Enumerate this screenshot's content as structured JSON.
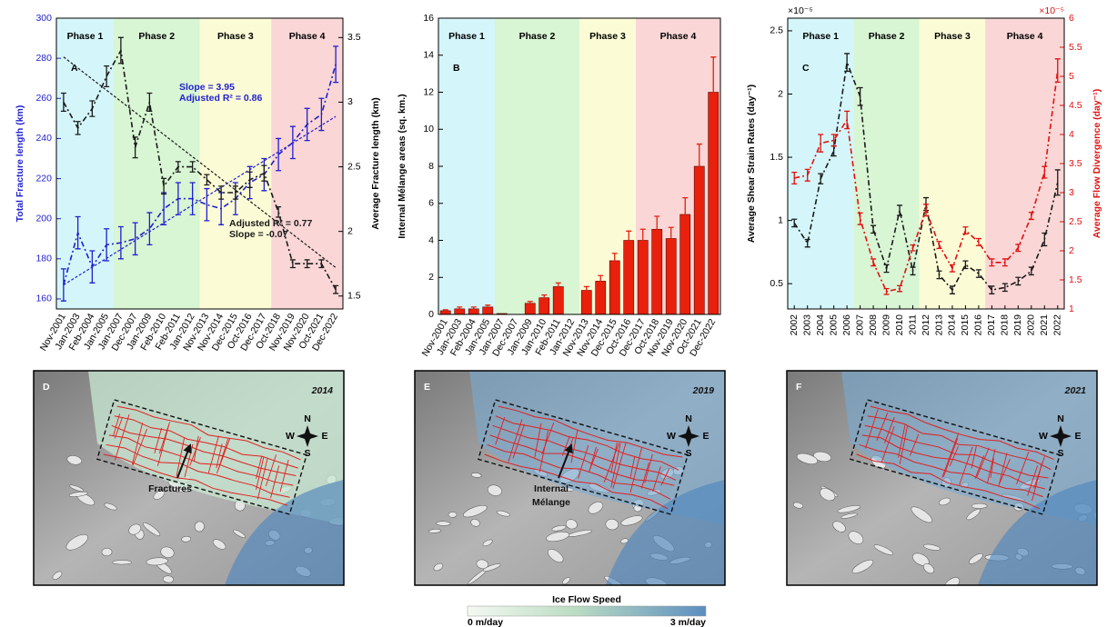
{
  "chart_data": [
    {
      "type": "line",
      "letter": "A",
      "categories": [
        "Nov-2001",
        "Jan-2003",
        "Feb-2004",
        "Jan-2005",
        "Jan-2007",
        "Dec-2007",
        "Jan-2009",
        "Feb-2010",
        "Feb-2011",
        "Jan-2012",
        "Nov-2013",
        "Nov-2014",
        "Dec-2015",
        "Oct-2016",
        "Dec-2017",
        "Oct-2018",
        "Nov-2019",
        "Nov-2020",
        "Oct-2021",
        "Dec-2022"
      ],
      "ylabel": "Total Fracture length (km)",
      "y2label": "Average Fracture length (km)",
      "ycolor": "#1f1fd0",
      "y2color": "#000000",
      "ylim": [
        155,
        300
      ],
      "yticks": [
        160,
        180,
        200,
        220,
        240,
        260,
        280,
        300
      ],
      "y2lim": [
        1.4,
        3.65
      ],
      "y2ticks": [
        1.5,
        2,
        2.5,
        3,
        3.5
      ],
      "phases": [
        {
          "label": "Phase 1",
          "from": "Nov-2001",
          "to": "Jan-2005",
          "color": "#d4f6fa"
        },
        {
          "label": "Phase 2",
          "from": "Jan-2007",
          "to": "Jan-2012",
          "color": "#d8f5d4"
        },
        {
          "label": "Phase 3",
          "from": "Nov-2013",
          "to": "Dec-2017",
          "color": "#fbfbd6"
        },
        {
          "label": "Phase 4",
          "from": "Oct-2018",
          "to": "Dec-2022",
          "color": "#fad6d6"
        }
      ],
      "series": [
        {
          "color": "#1f1fd0",
          "axis": "y",
          "values": [
            167,
            193,
            176,
            187,
            188,
            190,
            195,
            205,
            210,
            210,
            207,
            205,
            210,
            218,
            222,
            232,
            238,
            247,
            252,
            277
          ],
          "errors": [
            8,
            8,
            8,
            8,
            8,
            8,
            8,
            8,
            8,
            8,
            8,
            8,
            8,
            8,
            8,
            8,
            8,
            8,
            8,
            9
          ]
        },
        {
          "color": "#1a1a1a",
          "axis": "y2",
          "values": [
            3.0,
            2.8,
            2.95,
            3.2,
            3.4,
            2.65,
            3.0,
            2.35,
            2.5,
            2.5,
            2.4,
            2.3,
            2.3,
            2.4,
            2.45,
            2.15,
            1.75,
            1.75,
            1.75,
            1.55
          ],
          "errors": [
            0.07,
            0.05,
            0.06,
            0.08,
            0.1,
            0.08,
            0.07,
            0.06,
            0.04,
            0.04,
            0.04,
            0.05,
            0.05,
            0.06,
            0.06,
            0.04,
            0.03,
            0.03,
            0.03,
            0.03
          ]
        }
      ],
      "trend_lines": [
        {
          "color": "#1f1fd0",
          "axis": "y",
          "from": 167,
          "to": 251,
          "labels": [
            "Slope = 3.95",
            "Adjusted R² = 0.86"
          ]
        },
        {
          "color": "#1a1a1a",
          "axis": "y2",
          "from": 3.35,
          "to": 1.72,
          "labels": [
            "Adjusted R² = 0.77",
            "Slope = -0.07"
          ]
        }
      ]
    },
    {
      "type": "bar",
      "letter": "B",
      "categories": [
        "Nov-2001",
        "Jan-2003",
        "Feb-2004",
        "Jan-2005",
        "Jan-2007",
        "Dec-2007",
        "Jan-2009",
        "Jan-2010",
        "Feb-2011",
        "Jan-2012",
        "Nov-2013",
        "Nov-2014",
        "Dec-2015",
        "Oct-2016",
        "Dec-2017",
        "Oct-2018",
        "Nov-2019",
        "Nov-2020",
        "Oct-2021",
        "Dec-2022"
      ],
      "ylabel": "Internal Mélange areas (sq. km.)",
      "ycolor": "#000000",
      "ylim": [
        0,
        16
      ],
      "yticks": [
        0,
        2,
        4,
        6,
        8,
        10,
        12,
        14,
        16
      ],
      "phases": [
        {
          "label": "Phase 1",
          "from": "Nov-2001",
          "to": "Jan-2005",
          "color": "#d4f6fa"
        },
        {
          "label": "Phase 2",
          "from": "Jan-2007",
          "to": "Jan-2012",
          "color": "#d8f5d4"
        },
        {
          "label": "Phase 3",
          "from": "Nov-2013",
          "to": "Oct-2016",
          "color": "#fbfbd6"
        },
        {
          "label": "Phase 4",
          "from": "Dec-2017",
          "to": "Dec-2022",
          "color": "#fad6d6"
        }
      ],
      "series": [
        {
          "color": "#e8200c",
          "axis": "y",
          "values": [
            0.2,
            0.3,
            0.3,
            0.4,
            0.05,
            0,
            0.6,
            0.9,
            1.5,
            0,
            1.3,
            1.8,
            2.9,
            4.0,
            4.0,
            4.6,
            4.1,
            5.4,
            8.0,
            12.0
          ],
          "errors": [
            0.05,
            0.1,
            0.1,
            0.1,
            0,
            0,
            0.1,
            0.15,
            0.2,
            0,
            0.2,
            0.3,
            0.4,
            0.5,
            0.6,
            0.7,
            0.6,
            0.9,
            1.2,
            1.9
          ]
        }
      ]
    },
    {
      "type": "line",
      "letter": "C",
      "x": [
        2002,
        2003,
        2004,
        2005,
        2006,
        2007,
        2008,
        2009,
        2010,
        2011,
        2012,
        2013,
        2014,
        2015,
        2016,
        2017,
        2018,
        2019,
        2020,
        2021,
        2022
      ],
      "xlim": [
        2001.5,
        2022.5
      ],
      "xticks": [
        2002,
        2003,
        2004,
        2005,
        2006,
        2007,
        2008,
        2009,
        2010,
        2011,
        2012,
        2013,
        2014,
        2015,
        2016,
        2017,
        2018,
        2019,
        2020,
        2021,
        2022
      ],
      "ylabel": "Average Shear Strain Rates (day⁻¹)",
      "y2label": "Average Flow Divergence (day⁻¹)",
      "ycolor": "#000000",
      "y2color": "#e01010",
      "y_exponent": "×10⁻⁵",
      "y2_exponent": "×10⁻⁵",
      "ylim": [
        0.3,
        2.6
      ],
      "yticks": [
        0.5,
        1,
        1.5,
        2,
        2.5
      ],
      "y2lim": [
        1,
        6
      ],
      "y2ticks": [
        1,
        1.5,
        2,
        2.5,
        3,
        3.5,
        4,
        4.5,
        5,
        5.5,
        6
      ],
      "phases": [
        {
          "label": "Phase 1",
          "from": 2002,
          "to": 2006,
          "color": "#d4f6fa"
        },
        {
          "label": "Phase 2",
          "from": 2007,
          "to": 2011,
          "color": "#d8f5d4"
        },
        {
          "label": "Phase 3",
          "from": 2012,
          "to": 2016,
          "color": "#fbfbd6"
        },
        {
          "label": "Phase 4",
          "from": 2017,
          "to": 2022,
          "color": "#fad6d6"
        }
      ],
      "series": [
        {
          "color": "#1a1a1a",
          "axis": "y",
          "values": [
            0.98,
            0.82,
            1.33,
            1.55,
            2.25,
            1.98,
            0.93,
            0.62,
            1.08,
            0.6,
            1.13,
            0.57,
            0.45,
            0.65,
            0.58,
            0.45,
            0.47,
            0.52,
            0.6,
            0.85,
            1.3
          ],
          "errors": [
            0.03,
            0.03,
            0.04,
            0.04,
            0.07,
            0.07,
            0.03,
            0.03,
            0.04,
            0.03,
            0.05,
            0.03,
            0.03,
            0.03,
            0.03,
            0.03,
            0.03,
            0.03,
            0.03,
            0.05,
            0.1
          ]
        },
        {
          "color": "#e01010",
          "axis": "y2",
          "values": [
            3.25,
            3.3,
            3.85,
            3.9,
            4.25,
            2.55,
            1.8,
            1.3,
            1.35,
            2.05,
            2.7,
            2.1,
            1.7,
            2.35,
            2.15,
            1.8,
            1.8,
            2.05,
            2.6,
            3.35,
            5.1
          ],
          "errors": [
            0.1,
            0.1,
            0.15,
            0.1,
            0.15,
            0.1,
            0.06,
            0.05,
            0.05,
            0.05,
            0.1,
            0.06,
            0.06,
            0.06,
            0.06,
            0.06,
            0.06,
            0.06,
            0.06,
            0.1,
            0.2
          ]
        }
      ]
    }
  ],
  "maps": [
    {
      "letter": "D",
      "year": "2014",
      "annotation": [
        "Fractures"
      ],
      "compass": [
        "N",
        "E",
        "S",
        "W"
      ]
    },
    {
      "letter": "E",
      "year": "2019",
      "annotation": [
        "Internal",
        "Mélange"
      ],
      "compass": [
        "N",
        "E",
        "S",
        "W"
      ]
    },
    {
      "letter": "F",
      "year": "2021",
      "compass": [
        "N",
        "E",
        "S",
        "W"
      ]
    }
  ],
  "colorbar": {
    "title": "Ice Flow Speed",
    "min_label": "0 m/day",
    "max_label": "3 m/day"
  }
}
